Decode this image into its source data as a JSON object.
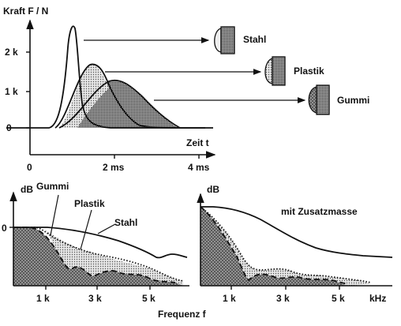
{
  "top_chart": {
    "ylabel": "Kraft F / N",
    "xlabel": "Zeit t",
    "yticks": [
      "0",
      "1 k",
      "2 k"
    ],
    "xticks": [
      "0",
      "2 ms",
      "4 ms"
    ],
    "arrows": [
      "Stahl",
      "Plastik",
      "Gummi"
    ]
  },
  "left_chart": {
    "ylabel": "dB",
    "zero_label": "0",
    "xticks": [
      "1 k",
      "3 k",
      "5 k"
    ],
    "curves": [
      "Gummi",
      "Plastik",
      "Stahl"
    ]
  },
  "right_chart": {
    "ylabel": "dB",
    "curve_label": "mit Zusatzmasse",
    "xticks": [
      "1 k",
      "3 k",
      "5 k",
      "kHz"
    ]
  },
  "common": {
    "xlabel": "Frequenz  f"
  }
}
